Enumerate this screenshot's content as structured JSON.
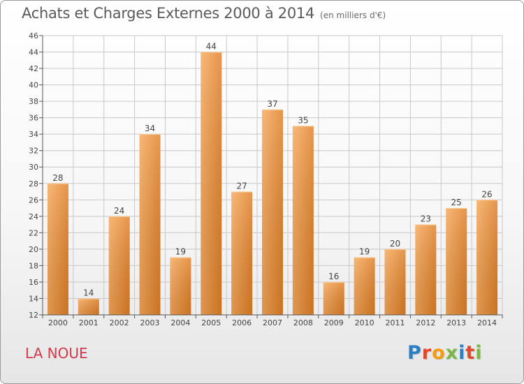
{
  "title": "Achats et Charges Externes 2000 à 2014",
  "title_unit": "(en milliers d'€)",
  "place_name": "LA NOUE",
  "logo": {
    "text": "Proxiti",
    "letter_colors": [
      "#2e7fc1",
      "#e2492b",
      "#f39c12",
      "#7ab648",
      "#2e7fc1",
      "#e2492b",
      "#7ab648"
    ]
  },
  "colors": {
    "bar_light": "#f7a85a",
    "bar_dark": "#e07f26",
    "title": "#5a5a5a",
    "place_name": "#d4394d",
    "grid": "#c8c8c8"
  },
  "chart_data": {
    "type": "bar",
    "categories": [
      "2000",
      "2001",
      "2002",
      "2003",
      "2004",
      "2005",
      "2006",
      "2007",
      "2008",
      "2009",
      "2010",
      "2011",
      "2012",
      "2013",
      "2014"
    ],
    "values": [
      28,
      14,
      24,
      34,
      19,
      44,
      27,
      37,
      35,
      16,
      19,
      20,
      23,
      25,
      26
    ],
    "data_labels": [
      "28",
      "14",
      "24",
      "34",
      "19",
      "44",
      "27",
      "37",
      "35",
      "16",
      "19",
      "20",
      "23",
      "25",
      "26"
    ],
    "y_ticks": [
      12,
      14,
      16,
      18,
      20,
      22,
      24,
      26,
      28,
      30,
      32,
      34,
      36,
      38,
      40,
      42,
      44,
      46
    ],
    "ylim": [
      12,
      46
    ],
    "grid": true,
    "legend": "none"
  }
}
